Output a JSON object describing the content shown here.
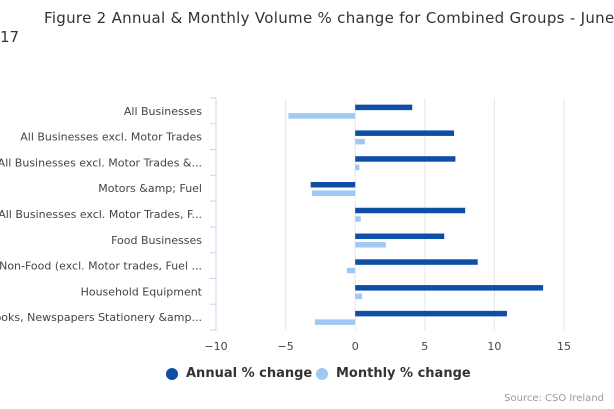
{
  "title_line1": "Figure 2 Annual & Monthly Volume % change for Combined Groups - June",
  "title_line2": "17",
  "credit": "Source: CSO Ireland",
  "colors": {
    "annual": "#0d4ea6",
    "monthly": "#9ec9f5",
    "grid": "#e6e6e6",
    "axis": "#ccd6eb"
  },
  "chart_data": {
    "type": "bar",
    "orientation": "horizontal",
    "categories": [
      "All Businesses",
      "All Businesses excl. Motor Trades",
      "All Businesses excl. Motor Trades &...",
      "Motors &amp; Fuel",
      "All Businesses excl. Motor Trades, F...",
      "Food Businesses",
      "Non-Food (excl. Motor trades, Fuel ...",
      "Household Equipment",
      "Books, Newspapers Stationery &amp..."
    ],
    "series": [
      {
        "name": "Annual % change",
        "values": [
          4.1,
          7.1,
          7.2,
          -3.2,
          7.9,
          6.4,
          8.8,
          13.5,
          10.9
        ]
      },
      {
        "name": "Monthly % change",
        "values": [
          -4.8,
          0.7,
          0.3,
          -3.1,
          0.4,
          2.2,
          -0.6,
          0.5,
          -2.9
        ]
      }
    ],
    "xlim": [
      -10,
      15
    ],
    "xticks": [
      "−10",
      "−5",
      "0",
      "5",
      "10",
      "15"
    ],
    "grid": true,
    "legend": "bottom"
  }
}
